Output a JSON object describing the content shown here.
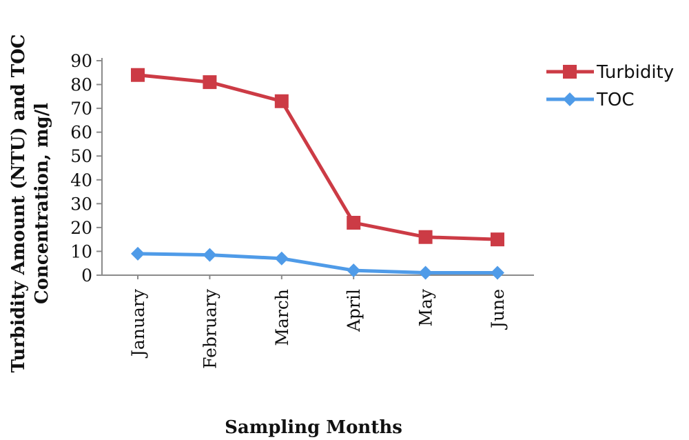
{
  "chart_data": {
    "type": "line",
    "categories": [
      "January",
      "February",
      "March",
      "April",
      "May",
      "June"
    ],
    "series": [
      {
        "name": "Turbidity",
        "values": [
          84,
          81,
          73,
          22,
          16,
          15
        ],
        "color": "#cc3b45",
        "marker": "square"
      },
      {
        "name": "TOC",
        "values": [
          9,
          8.5,
          7,
          2,
          1,
          1
        ],
        "color": "#4f9be8",
        "marker": "diamond"
      }
    ],
    "xlabel": "Sampling Months",
    "ylabel_lines": [
      "Turbidity Amount (NTU) and TOC",
      "Concentration, mg/l"
    ],
    "ylim": [
      0,
      90
    ],
    "yticks": [
      0,
      10,
      20,
      30,
      40,
      50,
      60,
      70,
      80,
      90
    ],
    "grid": false,
    "legend_position": "right"
  }
}
